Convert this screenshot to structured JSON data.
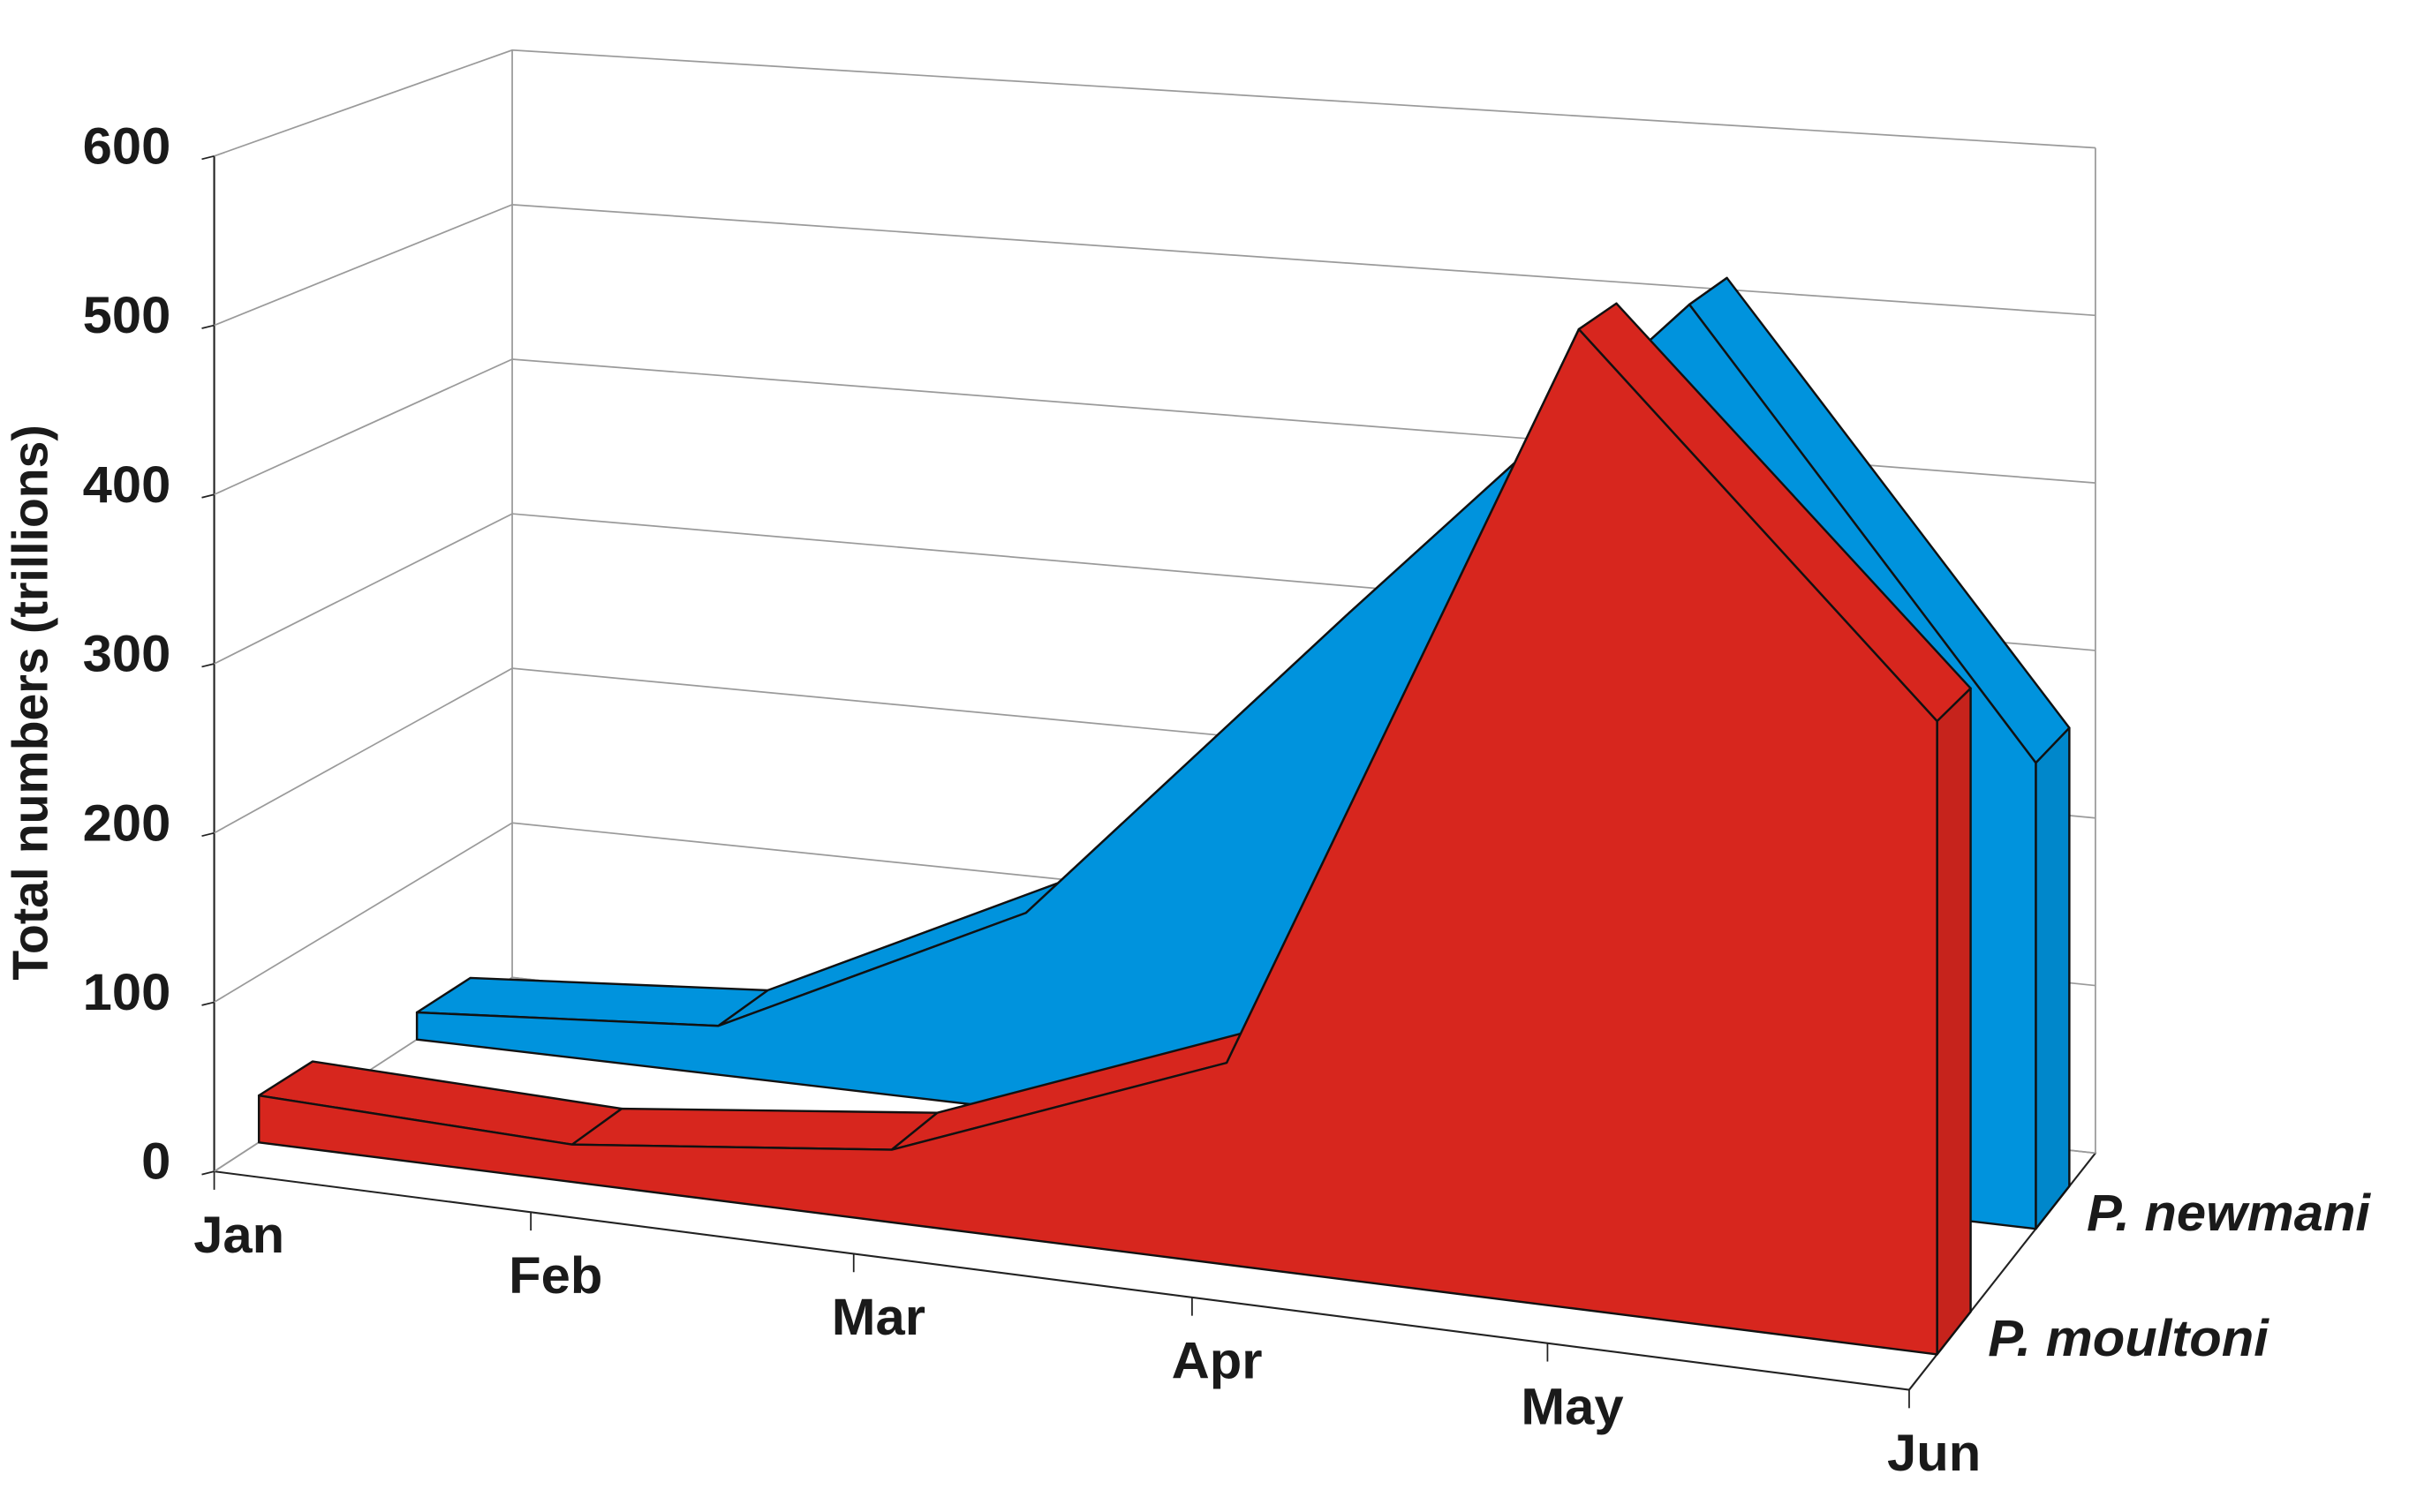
{
  "chart_data": {
    "type": "area3d",
    "y_axis_label": "Total numbers (trillions)",
    "categories": [
      "Jan",
      "Feb",
      "Mar",
      "Apr",
      "May",
      "Jun"
    ],
    "ylim": [
      0,
      600
    ],
    "yticks": [
      0,
      100,
      200,
      300,
      400,
      500,
      600
    ],
    "grid": true,
    "series": [
      {
        "name": "P. moultoni",
        "color": "#d7261e",
        "values": [
          28,
          22,
          42,
          115,
          550,
          350
        ]
      },
      {
        "name": "P. newmani",
        "color": "#0093dd",
        "values": [
          17,
          30,
          120,
          320,
          520,
          270
        ]
      }
    ]
  }
}
